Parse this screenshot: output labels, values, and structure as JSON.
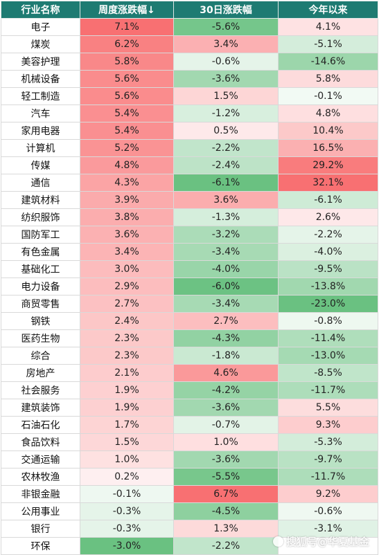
{
  "table": {
    "headers": [
      "行业名称",
      "周度涨跌幅↓",
      "30日涨跌幅",
      "今年以来"
    ],
    "rows": [
      {
        "name": "电子",
        "week": "7.1%",
        "d30": "-5.6%",
        "ytd": "4.1%"
      },
      {
        "name": "煤炭",
        "week": "6.2%",
        "d30": "3.4%",
        "ytd": "-5.1%"
      },
      {
        "name": "美容护理",
        "week": "5.8%",
        "d30": "-0.6%",
        "ytd": "-14.6%"
      },
      {
        "name": "机械设备",
        "week": "5.6%",
        "d30": "-3.6%",
        "ytd": "5.8%"
      },
      {
        "name": "轻工制造",
        "week": "5.6%",
        "d30": "1.5%",
        "ytd": "-0.1%"
      },
      {
        "name": "汽车",
        "week": "5.4%",
        "d30": "-1.2%",
        "ytd": "4.8%"
      },
      {
        "name": "家用电器",
        "week": "5.4%",
        "d30": "0.5%",
        "ytd": "10.4%"
      },
      {
        "name": "计算机",
        "week": "5.2%",
        "d30": "-2.2%",
        "ytd": "16.5%"
      },
      {
        "name": "传媒",
        "week": "4.8%",
        "d30": "-2.4%",
        "ytd": "29.2%"
      },
      {
        "name": "通信",
        "week": "4.3%",
        "d30": "-6.1%",
        "ytd": "32.1%"
      },
      {
        "name": "建筑材料",
        "week": "3.9%",
        "d30": "3.6%",
        "ytd": "-6.1%"
      },
      {
        "name": "纺织服饰",
        "week": "3.8%",
        "d30": "-1.3%",
        "ytd": "2.6%"
      },
      {
        "name": "国防军工",
        "week": "3.6%",
        "d30": "-3.2%",
        "ytd": "-2.2%"
      },
      {
        "name": "有色金属",
        "week": "3.4%",
        "d30": "-3.4%",
        "ytd": "-4.0%"
      },
      {
        "name": "基础化工",
        "week": "3.0%",
        "d30": "-4.0%",
        "ytd": "-9.5%"
      },
      {
        "name": "电力设备",
        "week": "2.9%",
        "d30": "-6.0%",
        "ytd": "-13.8%"
      },
      {
        "name": "商贸零售",
        "week": "2.7%",
        "d30": "-3.4%",
        "ytd": "-23.0%"
      },
      {
        "name": "钢铁",
        "week": "2.4%",
        "d30": "2.7%",
        "ytd": "-0.8%"
      },
      {
        "name": "医药生物",
        "week": "2.3%",
        "d30": "-4.3%",
        "ytd": "-11.4%"
      },
      {
        "name": "综合",
        "week": "2.3%",
        "d30": "-1.8%",
        "ytd": "-13.0%"
      },
      {
        "name": "房地产",
        "week": "2.1%",
        "d30": "4.6%",
        "ytd": "-8.5%"
      },
      {
        "name": "社会服务",
        "week": "1.9%",
        "d30": "-4.2%",
        "ytd": "-11.7%"
      },
      {
        "name": "建筑装饰",
        "week": "1.9%",
        "d30": "-3.6%",
        "ytd": "5.5%"
      },
      {
        "name": "石油石化",
        "week": "1.7%",
        "d30": "-0.7%",
        "ytd": "9.3%"
      },
      {
        "name": "食品饮料",
        "week": "1.5%",
        "d30": "1.0%",
        "ytd": "-5.3%"
      },
      {
        "name": "交通运输",
        "week": "1.0%",
        "d30": "-3.6%",
        "ytd": "-9.7%"
      },
      {
        "name": "农林牧渔",
        "week": "0.2%",
        "d30": "-5.5%",
        "ytd": "-11.7%"
      },
      {
        "name": "非银金融",
        "week": "-0.1%",
        "d30": "6.7%",
        "ytd": "9.2%"
      },
      {
        "name": "公用事业",
        "week": "-0.3%",
        "d30": "-4.5%",
        "ytd": "-0.6%"
      },
      {
        "name": "银行",
        "week": "-0.3%",
        "d30": "1.3%",
        "ytd": "-3.1%"
      },
      {
        "name": "环保",
        "week": "-3.0%",
        "d30": "-2.2%",
        "ytd": ""
      }
    ]
  },
  "watermark": {
    "text": "搜狐号@华夏基金"
  },
  "colors": {
    "header_bg": "#1e7b72",
    "header_text": "#ffffff",
    "positive_max": "#f8696b",
    "negative_max": "#63be7b"
  }
}
